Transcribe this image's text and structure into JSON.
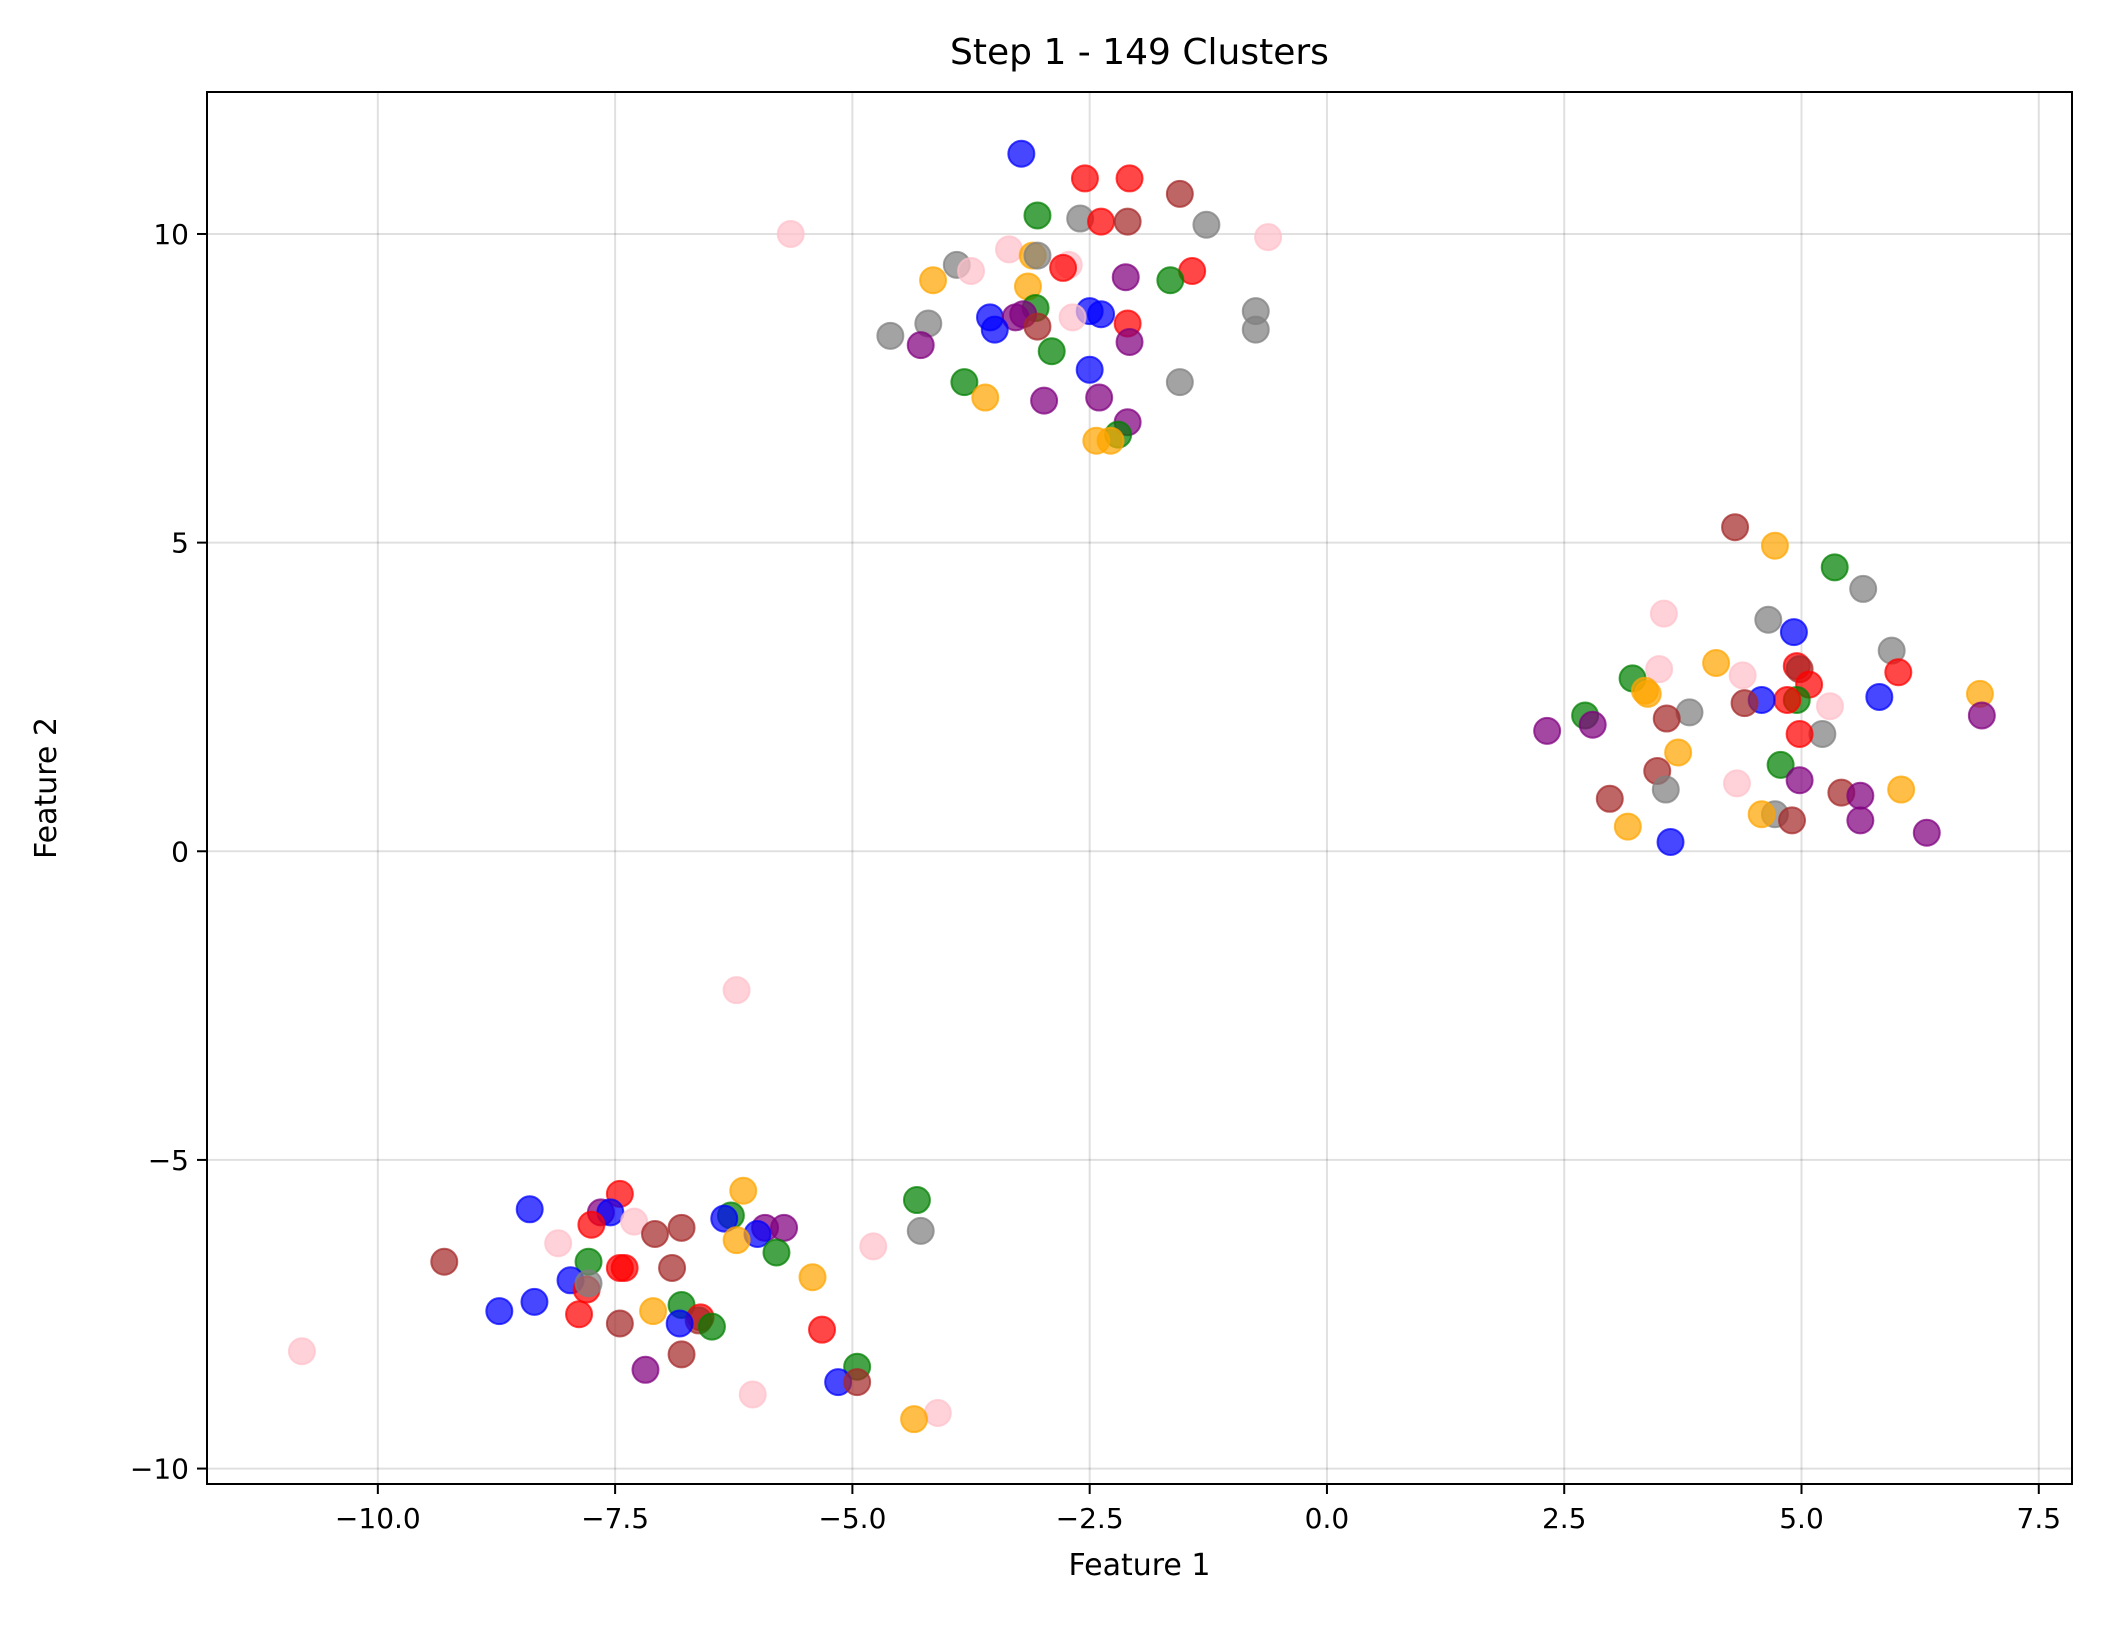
{
  "chart_data": {
    "type": "scatter",
    "title": "Step 1 - 149 Clusters",
    "xlabel": "Feature 1",
    "ylabel": "Feature 2",
    "xlim": [
      -11.8,
      7.85
    ],
    "ylim": [
      -10.25,
      12.3
    ],
    "x_ticks": [
      -10.0,
      -7.5,
      -5.0,
      -2.5,
      0.0,
      2.5,
      5.0,
      7.5
    ],
    "x_tick_labels": [
      "−10.0",
      "−7.5",
      "−5.0",
      "−2.5",
      "0.0",
      "2.5",
      "5.0",
      "7.5"
    ],
    "y_ticks": [
      -10,
      -5,
      0,
      5,
      10
    ],
    "y_tick_labels": [
      "−10",
      "−5",
      "0",
      "5",
      "10"
    ],
    "grid": true,
    "legend": "none",
    "colors": {
      "blue": "#0000ff",
      "red": "#ff0000",
      "green": "#008000",
      "orange": "#ffa500",
      "purple": "#800080",
      "brown": "#a52a2a",
      "pink": "#ffc0cb",
      "gray": "#808080"
    },
    "marker_alpha": 0.72,
    "points": [
      {
        "x": -3.22,
        "y": 11.3,
        "c": "blue"
      },
      {
        "x": -2.55,
        "y": 10.9,
        "c": "red"
      },
      {
        "x": -2.08,
        "y": 10.9,
        "c": "red"
      },
      {
        "x": -1.55,
        "y": 10.65,
        "c": "brown"
      },
      {
        "x": -3.05,
        "y": 10.3,
        "c": "green"
      },
      {
        "x": -2.6,
        "y": 10.25,
        "c": "gray"
      },
      {
        "x": -2.38,
        "y": 10.2,
        "c": "red"
      },
      {
        "x": -2.1,
        "y": 10.2,
        "c": "brown"
      },
      {
        "x": -1.27,
        "y": 10.15,
        "c": "gray"
      },
      {
        "x": -5.65,
        "y": 10.0,
        "c": "pink"
      },
      {
        "x": -0.62,
        "y": 9.95,
        "c": "pink"
      },
      {
        "x": -3.35,
        "y": 9.75,
        "c": "pink"
      },
      {
        "x": -3.1,
        "y": 9.65,
        "c": "orange"
      },
      {
        "x": -3.05,
        "y": 9.65,
        "c": "gray"
      },
      {
        "x": -2.72,
        "y": 9.5,
        "c": "pink"
      },
      {
        "x": -2.78,
        "y": 9.45,
        "c": "red"
      },
      {
        "x": -3.9,
        "y": 9.5,
        "c": "gray"
      },
      {
        "x": -3.75,
        "y": 9.4,
        "c": "pink"
      },
      {
        "x": -1.42,
        "y": 9.4,
        "c": "red"
      },
      {
        "x": -4.15,
        "y": 9.25,
        "c": "orange"
      },
      {
        "x": -2.12,
        "y": 9.3,
        "c": "purple"
      },
      {
        "x": -1.65,
        "y": 9.25,
        "c": "green"
      },
      {
        "x": -3.15,
        "y": 9.15,
        "c": "orange"
      },
      {
        "x": -3.07,
        "y": 8.8,
        "c": "green"
      },
      {
        "x": -0.75,
        "y": 8.75,
        "c": "gray"
      },
      {
        "x": -2.5,
        "y": 8.75,
        "c": "blue"
      },
      {
        "x": -2.38,
        "y": 8.7,
        "c": "blue"
      },
      {
        "x": -2.68,
        "y": 8.65,
        "c": "pink"
      },
      {
        "x": -3.55,
        "y": 8.65,
        "c": "blue"
      },
      {
        "x": -3.28,
        "y": 8.65,
        "c": "purple"
      },
      {
        "x": -3.2,
        "y": 8.7,
        "c": "purple"
      },
      {
        "x": -2.1,
        "y": 8.55,
        "c": "red"
      },
      {
        "x": -4.2,
        "y": 8.55,
        "c": "gray"
      },
      {
        "x": -3.05,
        "y": 8.5,
        "c": "brown"
      },
      {
        "x": -3.5,
        "y": 8.45,
        "c": "blue"
      },
      {
        "x": -0.75,
        "y": 8.45,
        "c": "gray"
      },
      {
        "x": -4.6,
        "y": 8.35,
        "c": "gray"
      },
      {
        "x": -2.08,
        "y": 8.25,
        "c": "purple"
      },
      {
        "x": -4.28,
        "y": 8.2,
        "c": "purple"
      },
      {
        "x": -2.9,
        "y": 8.1,
        "c": "green"
      },
      {
        "x": -2.5,
        "y": 7.8,
        "c": "blue"
      },
      {
        "x": -3.82,
        "y": 7.6,
        "c": "green"
      },
      {
        "x": -1.55,
        "y": 7.6,
        "c": "gray"
      },
      {
        "x": -3.6,
        "y": 7.35,
        "c": "orange"
      },
      {
        "x": -2.4,
        "y": 7.35,
        "c": "purple"
      },
      {
        "x": -2.98,
        "y": 7.3,
        "c": "purple"
      },
      {
        "x": -2.1,
        "y": 6.95,
        "c": "purple"
      },
      {
        "x": -2.2,
        "y": 6.75,
        "c": "green"
      },
      {
        "x": -2.43,
        "y": 6.65,
        "c": "orange"
      },
      {
        "x": -2.28,
        "y": 6.65,
        "c": "orange"
      },
      {
        "x": 4.3,
        "y": 5.25,
        "c": "brown"
      },
      {
        "x": 4.72,
        "y": 4.95,
        "c": "orange"
      },
      {
        "x": 5.35,
        "y": 4.6,
        "c": "green"
      },
      {
        "x": 5.65,
        "y": 4.25,
        "c": "gray"
      },
      {
        "x": 3.55,
        "y": 3.85,
        "c": "pink"
      },
      {
        "x": 4.65,
        "y": 3.75,
        "c": "gray"
      },
      {
        "x": 4.92,
        "y": 3.55,
        "c": "blue"
      },
      {
        "x": 5.95,
        "y": 3.25,
        "c": "gray"
      },
      {
        "x": 4.1,
        "y": 3.05,
        "c": "orange"
      },
      {
        "x": 3.5,
        "y": 2.95,
        "c": "pink"
      },
      {
        "x": 4.95,
        "y": 3.0,
        "c": "red"
      },
      {
        "x": 4.98,
        "y": 2.95,
        "c": "brown"
      },
      {
        "x": 6.02,
        "y": 2.9,
        "c": "red"
      },
      {
        "x": 4.38,
        "y": 2.85,
        "c": "pink"
      },
      {
        "x": 3.22,
        "y": 2.8,
        "c": "green"
      },
      {
        "x": 5.08,
        "y": 2.7,
        "c": "red"
      },
      {
        "x": 3.35,
        "y": 2.6,
        "c": "orange"
      },
      {
        "x": 3.38,
        "y": 2.55,
        "c": "orange"
      },
      {
        "x": 6.88,
        "y": 2.55,
        "c": "orange"
      },
      {
        "x": 5.82,
        "y": 2.5,
        "c": "blue"
      },
      {
        "x": 4.95,
        "y": 2.45,
        "c": "green"
      },
      {
        "x": 4.85,
        "y": 2.45,
        "c": "red"
      },
      {
        "x": 4.58,
        "y": 2.45,
        "c": "blue"
      },
      {
        "x": 4.4,
        "y": 2.4,
        "c": "brown"
      },
      {
        "x": 5.3,
        "y": 2.35,
        "c": "pink"
      },
      {
        "x": 3.82,
        "y": 2.25,
        "c": "gray"
      },
      {
        "x": 2.72,
        "y": 2.2,
        "c": "green"
      },
      {
        "x": 3.58,
        "y": 2.15,
        "c": "brown"
      },
      {
        "x": 6.9,
        "y": 2.2,
        "c": "purple"
      },
      {
        "x": 2.8,
        "y": 2.05,
        "c": "purple"
      },
      {
        "x": 2.32,
        "y": 1.95,
        "c": "purple"
      },
      {
        "x": 5.22,
        "y": 1.9,
        "c": "gray"
      },
      {
        "x": 4.98,
        "y": 1.9,
        "c": "red"
      },
      {
        "x": 3.7,
        "y": 1.6,
        "c": "orange"
      },
      {
        "x": 4.78,
        "y": 1.4,
        "c": "green"
      },
      {
        "x": 3.48,
        "y": 1.3,
        "c": "brown"
      },
      {
        "x": 4.98,
        "y": 1.15,
        "c": "purple"
      },
      {
        "x": 4.32,
        "y": 1.1,
        "c": "pink"
      },
      {
        "x": 3.57,
        "y": 1.0,
        "c": "gray"
      },
      {
        "x": 6.05,
        "y": 1.0,
        "c": "orange"
      },
      {
        "x": 5.42,
        "y": 0.95,
        "c": "brown"
      },
      {
        "x": 5.62,
        "y": 0.9,
        "c": "purple"
      },
      {
        "x": 2.98,
        "y": 0.85,
        "c": "brown"
      },
      {
        "x": 4.72,
        "y": 0.6,
        "c": "gray"
      },
      {
        "x": 4.58,
        "y": 0.6,
        "c": "orange"
      },
      {
        "x": 5.62,
        "y": 0.5,
        "c": "purple"
      },
      {
        "x": 4.9,
        "y": 0.5,
        "c": "brown"
      },
      {
        "x": 3.17,
        "y": 0.4,
        "c": "orange"
      },
      {
        "x": 6.32,
        "y": 0.3,
        "c": "purple"
      },
      {
        "x": 3.62,
        "y": 0.15,
        "c": "blue"
      },
      {
        "x": -6.22,
        "y": -2.25,
        "c": "pink"
      },
      {
        "x": -7.45,
        "y": -5.55,
        "c": "red"
      },
      {
        "x": -6.15,
        "y": -5.5,
        "c": "orange"
      },
      {
        "x": -4.32,
        "y": -5.65,
        "c": "green"
      },
      {
        "x": -8.4,
        "y": -5.8,
        "c": "blue"
      },
      {
        "x": -7.65,
        "y": -5.85,
        "c": "purple"
      },
      {
        "x": -7.55,
        "y": -5.85,
        "c": "blue"
      },
      {
        "x": -6.28,
        "y": -5.9,
        "c": "green"
      },
      {
        "x": -6.35,
        "y": -5.95,
        "c": "blue"
      },
      {
        "x": -7.3,
        "y": -6.0,
        "c": "pink"
      },
      {
        "x": -7.75,
        "y": -6.05,
        "c": "red"
      },
      {
        "x": -6.8,
        "y": -6.1,
        "c": "brown"
      },
      {
        "x": -5.72,
        "y": -6.1,
        "c": "purple"
      },
      {
        "x": -5.92,
        "y": -6.1,
        "c": "purple"
      },
      {
        "x": -4.28,
        "y": -6.15,
        "c": "gray"
      },
      {
        "x": -7.08,
        "y": -6.2,
        "c": "brown"
      },
      {
        "x": -6.0,
        "y": -6.2,
        "c": "blue"
      },
      {
        "x": -6.22,
        "y": -6.3,
        "c": "orange"
      },
      {
        "x": -8.1,
        "y": -6.35,
        "c": "pink"
      },
      {
        "x": -4.78,
        "y": -6.4,
        "c": "pink"
      },
      {
        "x": -5.8,
        "y": -6.5,
        "c": "green"
      },
      {
        "x": -9.3,
        "y": -6.65,
        "c": "brown"
      },
      {
        "x": -7.78,
        "y": -6.65,
        "c": "green"
      },
      {
        "x": -6.9,
        "y": -6.75,
        "c": "brown"
      },
      {
        "x": -7.45,
        "y": -6.75,
        "c": "red"
      },
      {
        "x": -7.4,
        "y": -6.75,
        "c": "red"
      },
      {
        "x": -5.42,
        "y": -6.9,
        "c": "orange"
      },
      {
        "x": -7.97,
        "y": -6.95,
        "c": "blue"
      },
      {
        "x": -7.8,
        "y": -7.1,
        "c": "red"
      },
      {
        "x": -7.78,
        "y": -7.0,
        "c": "gray"
      },
      {
        "x": -8.35,
        "y": -7.3,
        "c": "blue"
      },
      {
        "x": -6.8,
        "y": -7.35,
        "c": "green"
      },
      {
        "x": -7.1,
        "y": -7.45,
        "c": "orange"
      },
      {
        "x": -8.72,
        "y": -7.45,
        "c": "blue"
      },
      {
        "x": -7.88,
        "y": -7.5,
        "c": "red"
      },
      {
        "x": -6.6,
        "y": -7.55,
        "c": "red"
      },
      {
        "x": -6.62,
        "y": -7.6,
        "c": "brown"
      },
      {
        "x": -6.82,
        "y": -7.65,
        "c": "blue"
      },
      {
        "x": -7.45,
        "y": -7.65,
        "c": "brown"
      },
      {
        "x": -6.48,
        "y": -7.7,
        "c": "green"
      },
      {
        "x": -5.32,
        "y": -7.75,
        "c": "red"
      },
      {
        "x": -10.8,
        "y": -8.1,
        "c": "pink"
      },
      {
        "x": -6.8,
        "y": -8.15,
        "c": "brown"
      },
      {
        "x": -4.95,
        "y": -8.35,
        "c": "green"
      },
      {
        "x": -7.18,
        "y": -8.4,
        "c": "purple"
      },
      {
        "x": -5.15,
        "y": -8.6,
        "c": "blue"
      },
      {
        "x": -4.95,
        "y": -8.6,
        "c": "brown"
      },
      {
        "x": -6.05,
        "y": -8.8,
        "c": "pink"
      },
      {
        "x": -4.1,
        "y": -9.1,
        "c": "pink"
      },
      {
        "x": -4.35,
        "y": -9.2,
        "c": "orange"
      }
    ]
  }
}
